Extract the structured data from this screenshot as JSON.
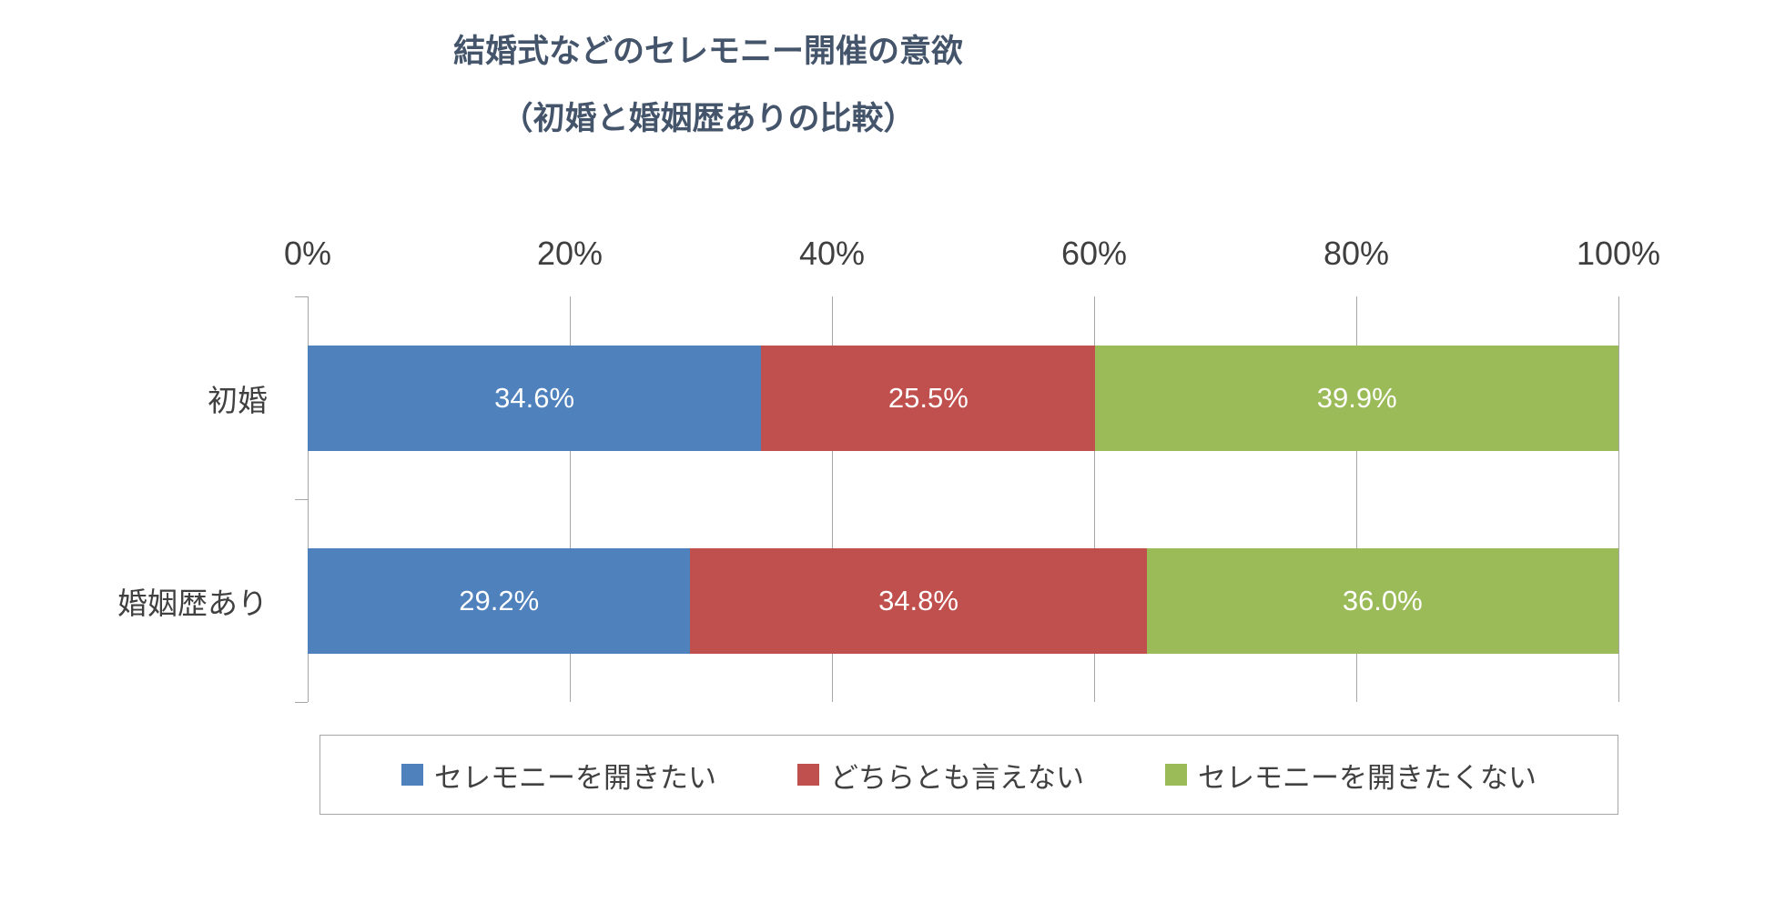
{
  "page": {
    "title_line1": "結婚式などのセレモニー開催の意欲",
    "title_line2": "（初婚と婚姻歴ありの比較）"
  },
  "chart_data": {
    "type": "bar",
    "orientation": "horizontal",
    "stacked": true,
    "title": "結婚式などのセレモニー開催の意欲（初婚と婚姻歴ありの比較）",
    "categories": [
      "初婚",
      "婚姻歴あり"
    ],
    "series": [
      {
        "name": "セレモニーを開きたい",
        "color": "#4F81BD",
        "values": [
          34.6,
          29.2
        ],
        "labels": [
          "34.6%",
          "29.2%"
        ]
      },
      {
        "name": "どちらとも言えない",
        "color": "#C0504D",
        "values": [
          25.5,
          34.8
        ],
        "labels": [
          "25.5%",
          "34.8%"
        ]
      },
      {
        "name": "セレモニーを開きたくない",
        "color": "#9BBB59",
        "values": [
          39.9,
          36.0
        ],
        "labels": [
          "39.9%",
          "36.0%"
        ]
      }
    ],
    "x_ticks": [
      "0%",
      "20%",
      "40%",
      "60%",
      "80%",
      "100%"
    ],
    "xlim": [
      0,
      100
    ],
    "grid": true,
    "legend_position": "bottom",
    "colors": {
      "grid": "#A6A6A6",
      "title": "#44546A",
      "bar_value_label": "#FFFFFF",
      "axis_text": "#3F3F3F"
    }
  }
}
